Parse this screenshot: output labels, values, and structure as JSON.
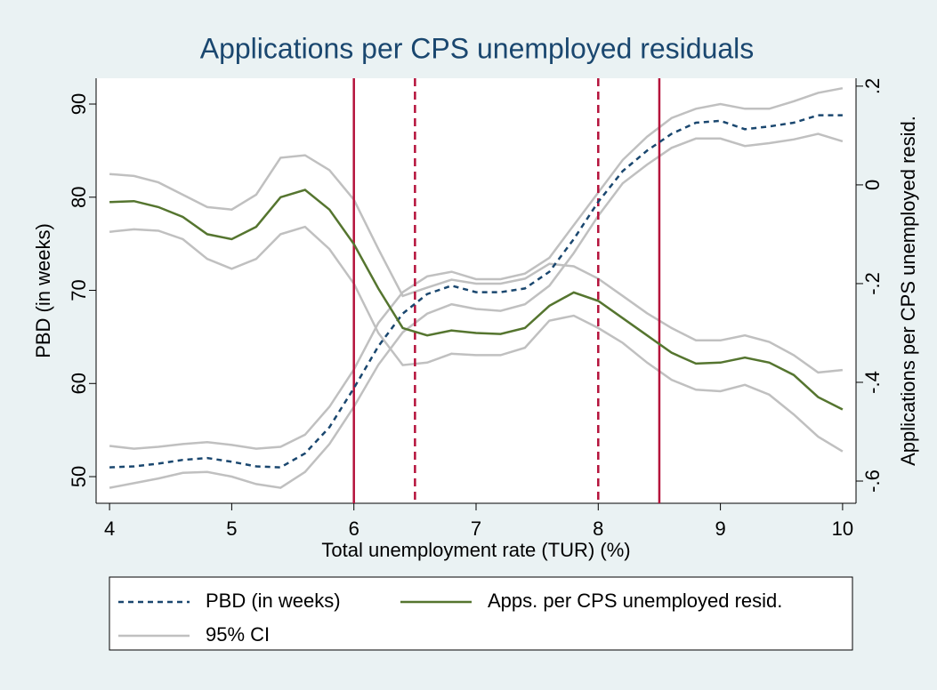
{
  "chart_data": {
    "type": "line",
    "title": "Applications per CPS unemployed residuals",
    "x_label": "Total unemployment rate (TUR) (%)",
    "y_label": "PBD (in weeks)",
    "y2_label": "Applications per CPS unemployed resid.",
    "x": [
      4,
      4.2,
      4.4,
      4.6,
      4.8,
      5,
      5.2,
      5.4,
      5.6,
      5.8,
      6,
      6.2,
      6.4,
      6.6,
      6.8,
      7,
      7.2,
      7.4,
      7.6,
      7.8,
      8,
      8.2,
      8.4,
      8.6,
      8.8,
      9,
      9.2,
      9.4,
      9.6,
      9.8,
      10
    ],
    "series": [
      {
        "name": "PBD (in weeks)",
        "color": "#1a476f",
        "style": "dash",
        "axis": "y",
        "values": [
          51.0,
          51.1,
          51.4,
          51.8,
          52.0,
          51.6,
          51.1,
          51.0,
          52.5,
          55.3,
          59.5,
          64.0,
          67.5,
          69.6,
          70.5,
          69.8,
          69.8,
          70.2,
          72.0,
          75.5,
          79.5,
          82.8,
          85.0,
          86.8,
          88.0,
          88.2,
          87.3,
          87.6,
          88.0,
          88.8,
          88.8
        ],
        "ci_upper": [
          53.3,
          53.0,
          53.2,
          53.5,
          53.7,
          53.4,
          53.0,
          53.2,
          54.5,
          57.5,
          61.5,
          66.5,
          69.8,
          71.5,
          72.0,
          71.2,
          71.2,
          71.8,
          73.5,
          77.0,
          80.5,
          84.0,
          86.5,
          88.5,
          89.5,
          90.0,
          89.5,
          89.5,
          90.3,
          91.2,
          91.7
        ],
        "ci_lower": [
          48.8,
          49.3,
          49.8,
          50.4,
          50.5,
          50.0,
          49.2,
          48.8,
          50.5,
          53.5,
          57.5,
          62.0,
          65.5,
          67.5,
          68.5,
          68.0,
          67.8,
          68.5,
          70.5,
          74.0,
          78.0,
          81.5,
          83.5,
          85.3,
          86.3,
          86.3,
          85.5,
          85.8,
          86.2,
          86.8,
          86.0
        ]
      },
      {
        "name": "Apps. per CPS unemployed resid.",
        "color": "#55752f",
        "style": "solid",
        "axis": "y2",
        "values": [
          -0.035,
          -0.033,
          -0.045,
          -0.065,
          -0.1,
          -0.11,
          -0.085,
          -0.025,
          -0.01,
          -0.05,
          -0.12,
          -0.21,
          -0.29,
          -0.305,
          -0.295,
          -0.3,
          -0.302,
          -0.29,
          -0.245,
          -0.218,
          -0.235,
          -0.27,
          -0.305,
          -0.34,
          -0.362,
          -0.36,
          -0.35,
          -0.36,
          -0.385,
          -0.43,
          -0.455
        ],
        "ci_upper": [
          0.022,
          0.018,
          0.005,
          -0.02,
          -0.045,
          -0.05,
          -0.02,
          0.055,
          0.06,
          0.03,
          -0.03,
          -0.13,
          -0.225,
          -0.208,
          -0.192,
          -0.2,
          -0.2,
          -0.19,
          -0.16,
          -0.165,
          -0.19,
          -0.225,
          -0.26,
          -0.29,
          -0.315,
          -0.315,
          -0.305,
          -0.318,
          -0.345,
          -0.38,
          -0.375
        ],
        "ci_lower": [
          -0.095,
          -0.09,
          -0.093,
          -0.11,
          -0.15,
          -0.17,
          -0.15,
          -0.1,
          -0.085,
          -0.13,
          -0.2,
          -0.3,
          -0.365,
          -0.36,
          -0.342,
          -0.345,
          -0.345,
          -0.33,
          -0.275,
          -0.265,
          -0.29,
          -0.32,
          -0.36,
          -0.395,
          -0.415,
          -0.418,
          -0.405,
          -0.425,
          -0.465,
          -0.51,
          -0.54
        ]
      }
    ],
    "ci_name": "95% CI",
    "ci_color": "#c0c0c0",
    "vlines": [
      {
        "value": 6,
        "style": "solid"
      },
      {
        "value": 6.5,
        "style": "dash"
      },
      {
        "value": 8,
        "style": "dash"
      },
      {
        "value": 8.5,
        "style": "solid"
      }
    ],
    "vline_color": "#b5123b",
    "xlim": [
      3.89,
      10.11
    ],
    "xticks": [
      4,
      5,
      6,
      7,
      8,
      9,
      10
    ],
    "ylim": [
      47.14,
      92.77
    ],
    "yticks": [
      50,
      60,
      70,
      80,
      90
    ],
    "y2lim": [
      -0.645,
      0.216
    ],
    "y2ticks": [
      {
        "value": -0.6,
        "label": "-.6"
      },
      {
        "value": -0.4,
        "label": "-.4"
      },
      {
        "value": -0.2,
        "label": "-.2"
      },
      0,
      {
        "value": 0.2,
        "label": ".2"
      }
    ],
    "grid": false
  }
}
